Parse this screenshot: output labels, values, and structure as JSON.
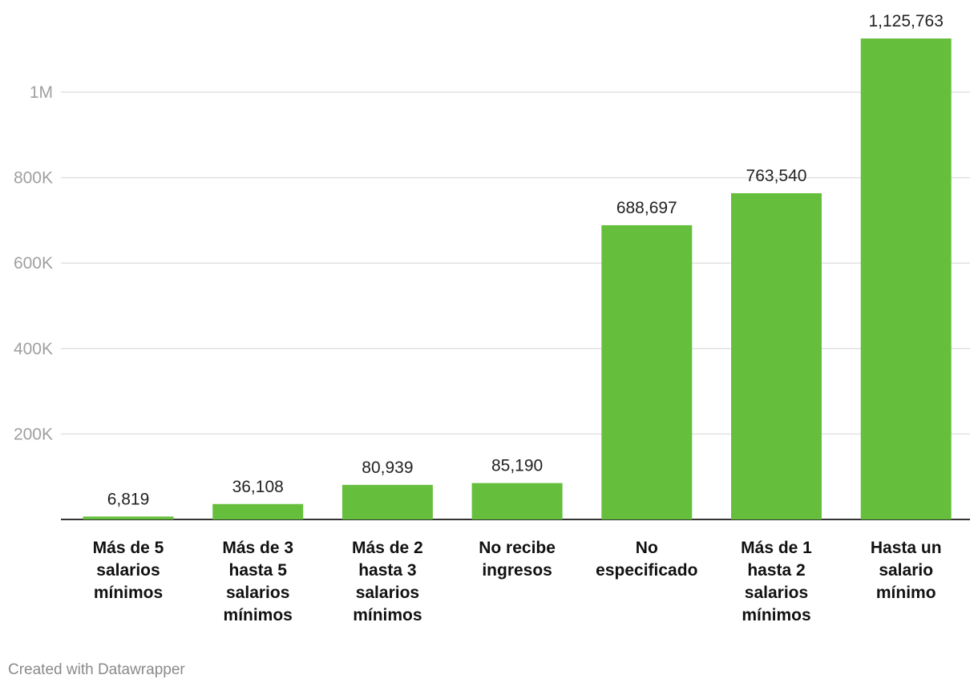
{
  "chart_data": {
    "type": "bar",
    "categories": [
      "Más de 5 salarios mínimos",
      "Más de 3 hasta 5 salarios mínimos",
      "Más de 2 hasta 3 salarios mínimos",
      "No recibe ingresos",
      "No especificado",
      "Más de 1 hasta 2 salarios mínimos",
      "Hasta un salario mínimo"
    ],
    "category_lines": [
      [
        "Más de 5",
        "salarios",
        "mínimos"
      ],
      [
        "Más de 3",
        "hasta 5",
        "salarios",
        "mínimos"
      ],
      [
        "Más de 2",
        "hasta 3",
        "salarios",
        "mínimos"
      ],
      [
        "No recibe",
        "ingresos"
      ],
      [
        "No",
        "especificado"
      ],
      [
        "Más de 1",
        "hasta 2",
        "salarios",
        "mínimos"
      ],
      [
        "Hasta un",
        "salario",
        "mínimo"
      ]
    ],
    "values": [
      6819,
      36108,
      80939,
      85190,
      688697,
      763540,
      1125763
    ],
    "value_labels": [
      "6,819",
      "36,108",
      "80,939",
      "85,190",
      "688,697",
      "763,540",
      "1,125,763"
    ],
    "yticks": [
      200000,
      400000,
      600000,
      800000,
      1000000
    ],
    "ytick_labels": [
      "200K",
      "400K",
      "600K",
      "800K",
      "1M"
    ],
    "ylim": [
      0,
      1125763
    ],
    "bar_color": "#66bf3c",
    "grid": true,
    "title": "",
    "xlabel": "",
    "ylabel": ""
  },
  "footer": {
    "credit": "Created with Datawrapper"
  }
}
